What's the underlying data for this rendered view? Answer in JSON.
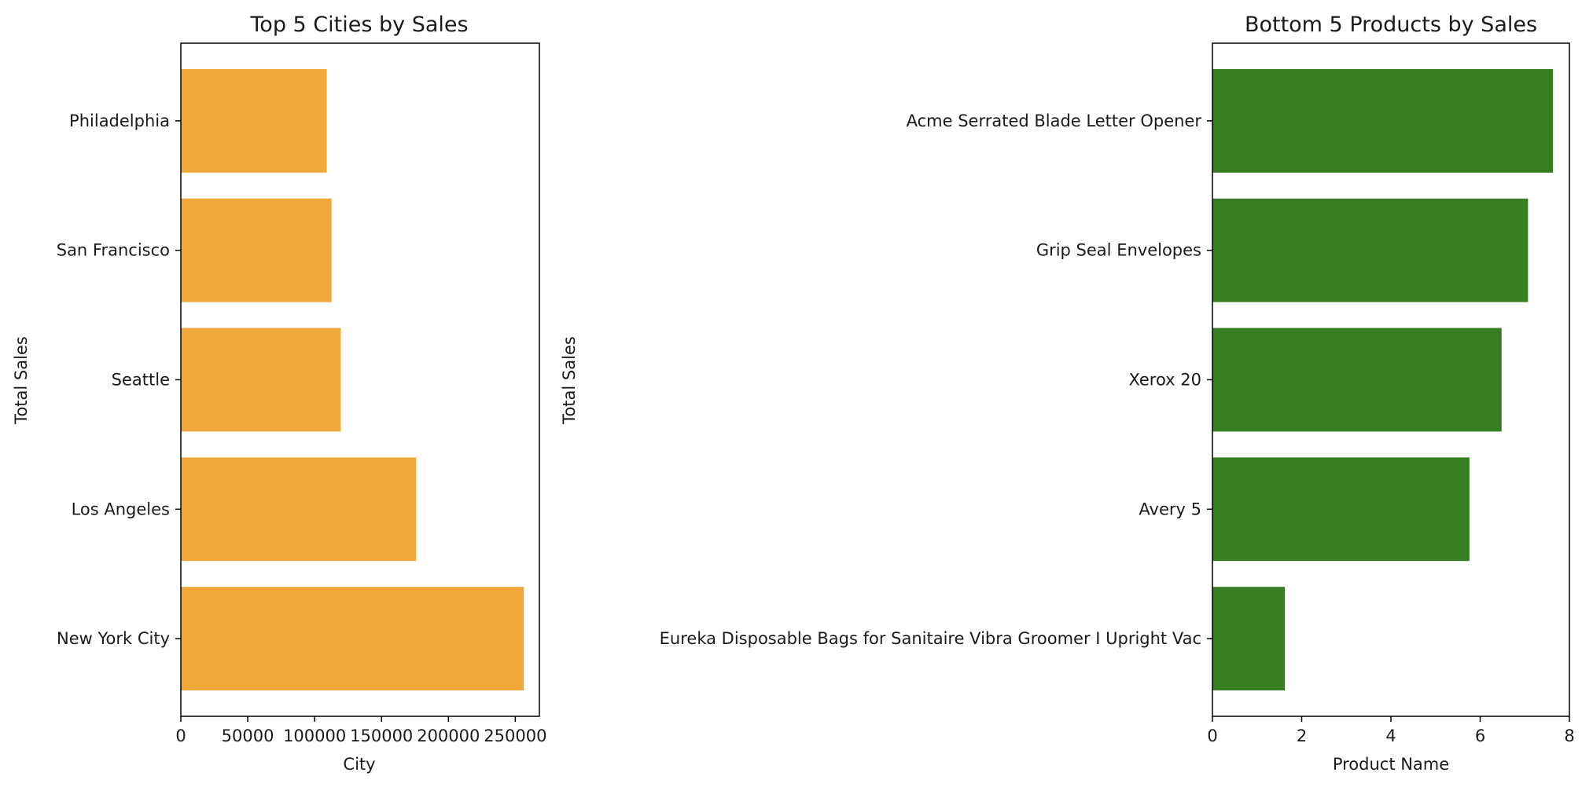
{
  "chart_data": [
    {
      "type": "bar",
      "orientation": "horizontal",
      "title": "Top 5 Cities by Sales",
      "xlabel": "City",
      "ylabel": "Total Sales",
      "categories": [
        "New York City",
        "Los Angeles",
        "Seattle",
        "San Francisco",
        "Philadelphia"
      ],
      "values": [
        256369,
        175851,
        119541,
        112669,
        109077
      ],
      "xlim": [
        0,
        268000
      ],
      "xticks": [
        "0",
        "50000",
        "100000",
        "150000",
        "200000",
        "250000"
      ],
      "xtick_values": [
        0,
        50000,
        100000,
        150000,
        200000,
        250000
      ],
      "bar_color": "#f0a83b",
      "grid": false
    },
    {
      "type": "bar",
      "orientation": "horizontal",
      "title": "Bottom 5 Products by Sales",
      "xlabel": "Product Name",
      "ylabel": "Total Sales",
      "categories": [
        "Eureka Disposable Bags for Sanitaire Vibra Groomer I Upright Vac",
        "Avery 5",
        "Xerox 20",
        "Grip Seal Envelopes",
        "Acme Serrated Blade Letter Opener"
      ],
      "values": [
        1.624,
        5.76,
        6.48,
        7.072,
        7.632
      ],
      "xlim": [
        0,
        8
      ],
      "xticks": [
        "0",
        "2",
        "4",
        "6",
        "8"
      ],
      "xtick_values": [
        0,
        2,
        4,
        6,
        8
      ],
      "bar_color": "#377e22",
      "grid": false
    }
  ]
}
